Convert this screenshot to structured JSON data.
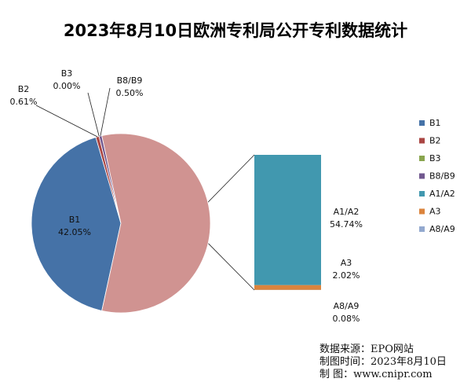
{
  "chart_data": {
    "type": "pie",
    "title": "2023年8月10日欧洲专利局公开专利数据统计",
    "series": [
      {
        "name": "B1",
        "value": 42.05,
        "label": "42.05%",
        "color": "#4572A7"
      },
      {
        "name": "B2",
        "value": 0.61,
        "label": "0.61%",
        "color": "#AA4643"
      },
      {
        "name": "B3",
        "value": 0.0,
        "label": "0.00%",
        "color": "#89A54E"
      },
      {
        "name": "B8/B9",
        "value": 0.5,
        "label": "0.50%",
        "color": "#71588F"
      },
      {
        "name": "A1/A2",
        "value": 54.74,
        "label": "54.74%",
        "color": "#4198AF"
      },
      {
        "name": "A3",
        "value": 2.02,
        "label": "2.02%",
        "color": "#DB843D"
      },
      {
        "name": "A8/A9",
        "value": 0.08,
        "label": "0.08%",
        "color": "#93A9CF"
      }
    ],
    "pie_segment": {
      "color": "#D09391",
      "members": [
        "A1/A2",
        "A3",
        "A8/A9"
      ]
    },
    "legend": "right"
  },
  "source": {
    "line1": "数据来源：EPO网站",
    "line2": "制图时间：2023年8月10日",
    "line3": "制      图：www.cnipr.com"
  }
}
